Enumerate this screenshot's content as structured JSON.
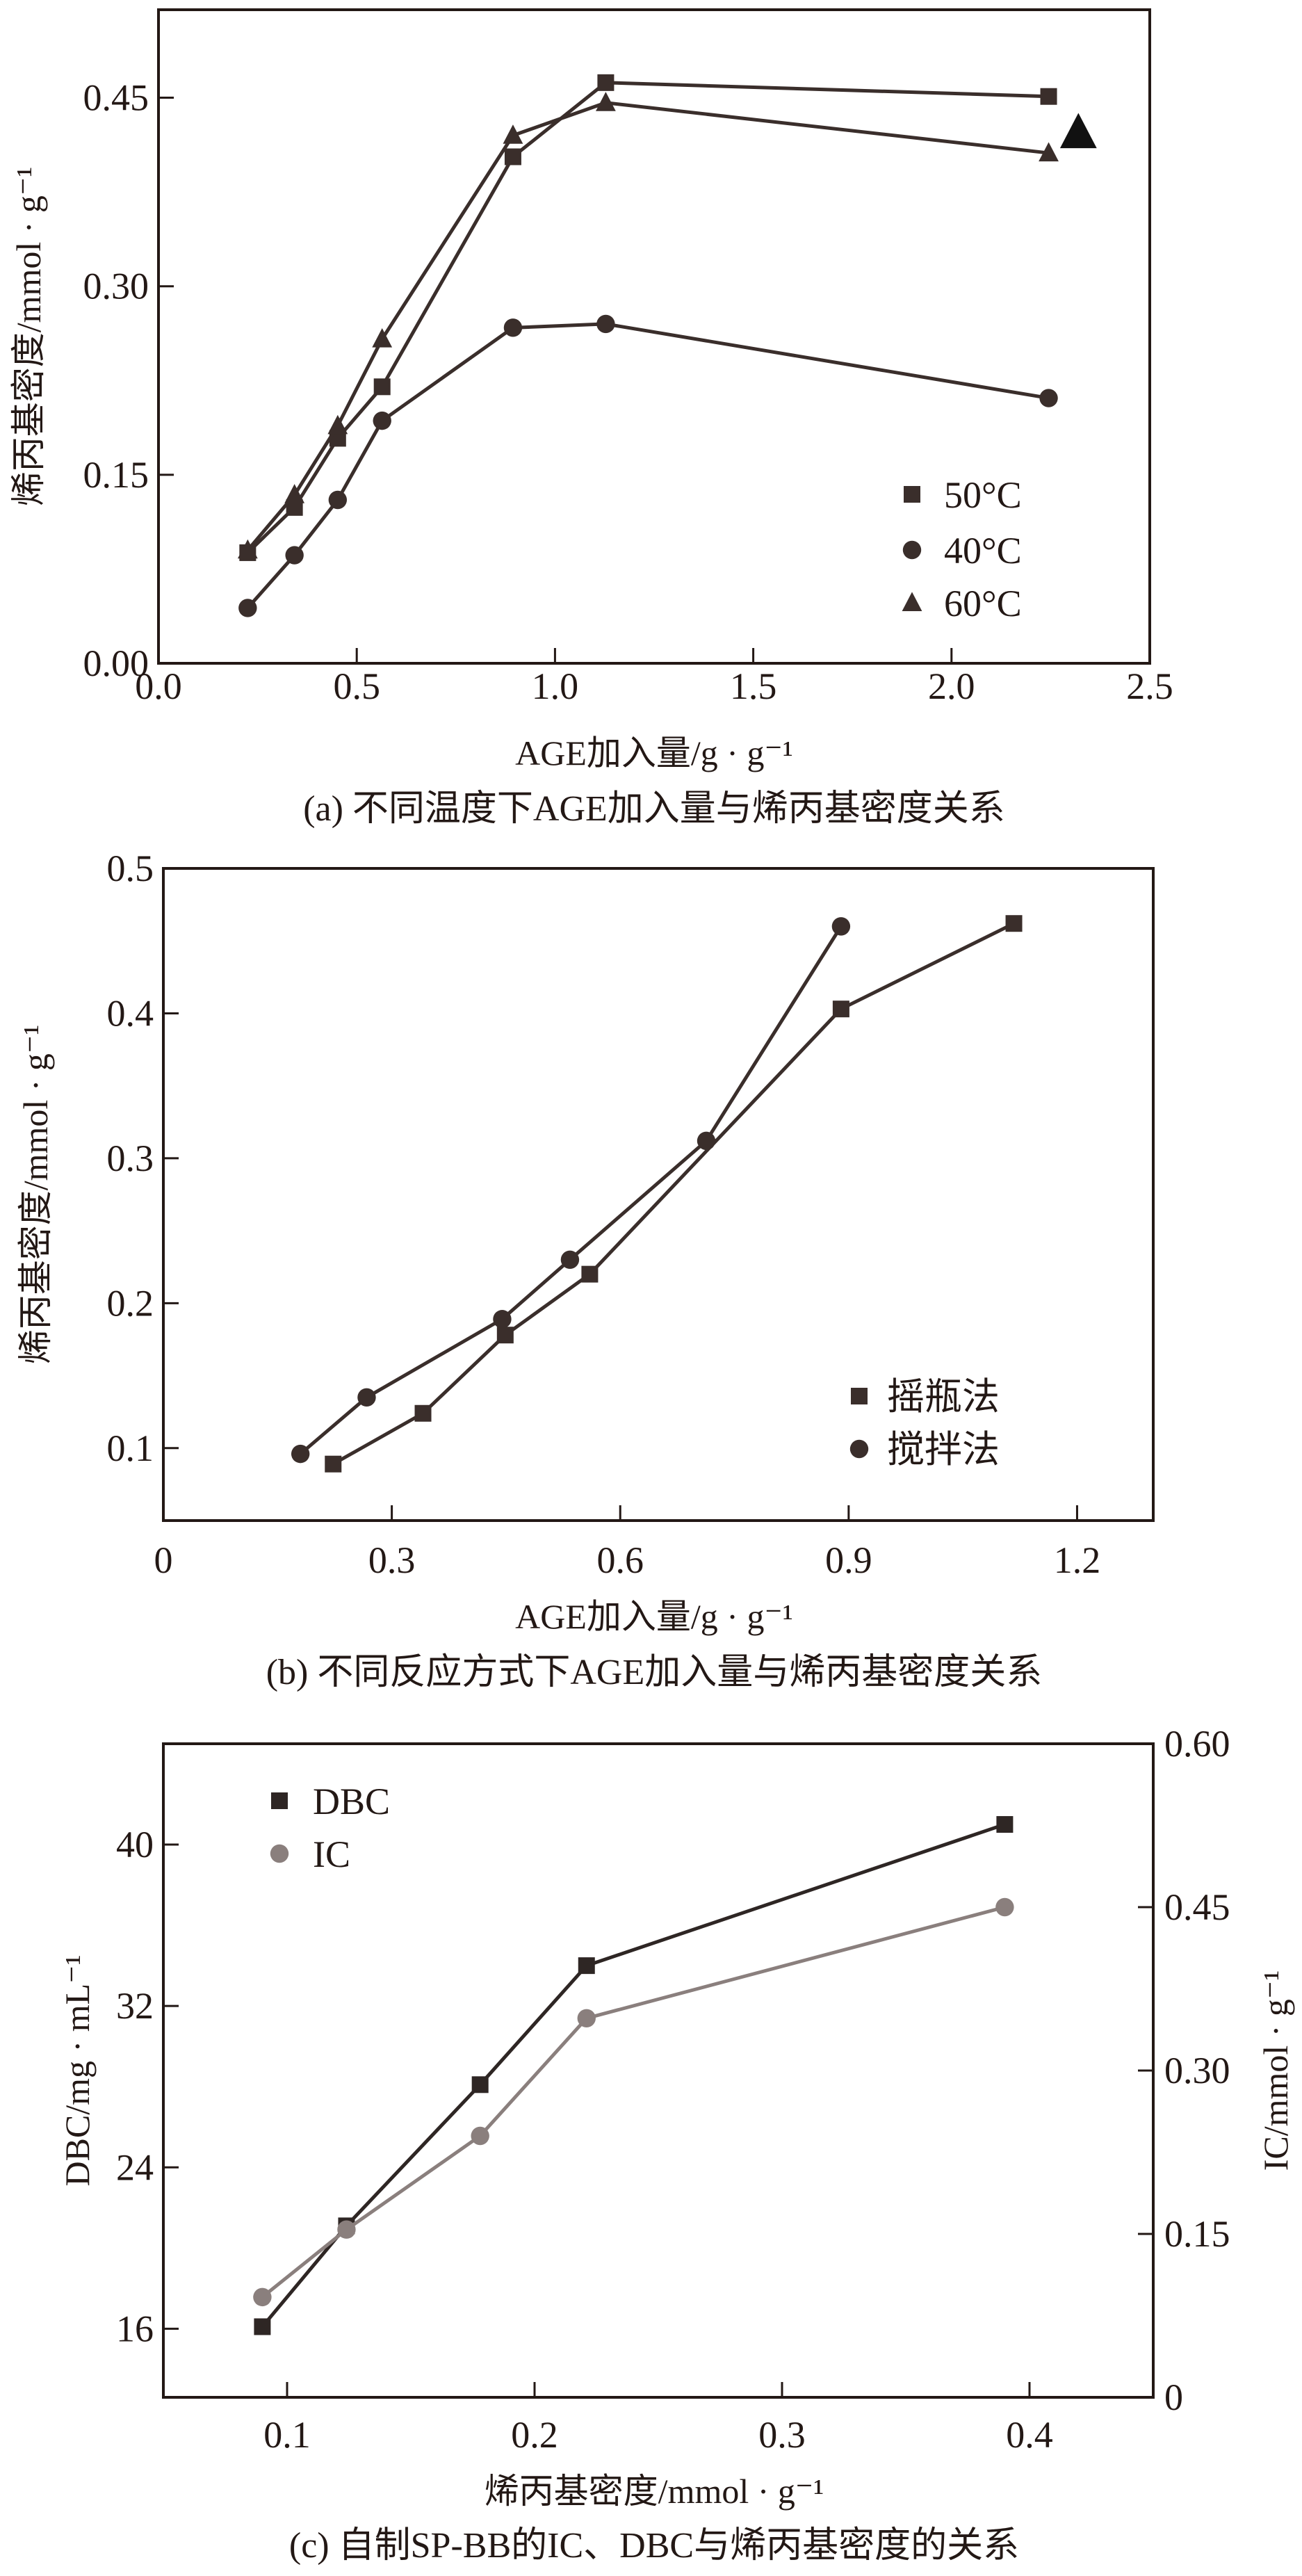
{
  "chart_data": [
    {
      "type": "line",
      "caption": "(a) 不同温度下AGE加入量与烯丙基密度关系",
      "xlabel": "AGE加入量/g · g⁻¹",
      "ylabel": "烯丙基密度/mmol · g⁻¹",
      "xlim": [
        0,
        2.5
      ],
      "ylim": [
        0,
        0.52
      ],
      "xticks": [
        "0.0",
        "0.5",
        "1.0",
        "1.5",
        "2.0",
        "2.5"
      ],
      "xtick_values": [
        0,
        0.5,
        1.0,
        1.5,
        2.0,
        2.5
      ],
      "yticks": [
        "0.00",
        "0.15",
        "0.30",
        "0.45"
      ],
      "ytick_values": [
        0,
        0.15,
        0.3,
        0.45
      ],
      "legend_position": "bottom-right",
      "grid": false,
      "series": [
        {
          "name": "50°C",
          "marker": "square",
          "color": "#3a2e2b",
          "x": [
            0.225,
            0.343,
            0.452,
            0.564,
            0.894,
            1.128,
            2.245
          ],
          "y": [
            0.088,
            0.124,
            0.179,
            0.22,
            0.403,
            0.462,
            0.451
          ]
        },
        {
          "name": "40°C",
          "marker": "circle",
          "color": "#3a2e2b",
          "x": [
            0.225,
            0.343,
            0.452,
            0.564,
            0.894,
            1.128,
            2.245
          ],
          "y": [
            0.044,
            0.086,
            0.13,
            0.193,
            0.267,
            0.27,
            0.211
          ]
        },
        {
          "name": "60°C",
          "marker": "triangle",
          "color": "#3a2e2b",
          "x": [
            0.225,
            0.343,
            0.452,
            0.564,
            0.894,
            1.128,
            2.245
          ],
          "y": [
            0.09,
            0.134,
            0.189,
            0.258,
            0.42,
            0.446,
            0.406
          ]
        }
      ],
      "annotation_marker": {
        "marker": "triangle",
        "x": 2.32,
        "y": 0.422
      }
    },
    {
      "type": "line",
      "caption": "(b) 不同反应方式下AGE加入量与烯丙基密度关系",
      "xlabel": "AGE加入量/g · g⁻¹",
      "ylabel": "烯丙基密度/mmol · g⁻¹",
      "xlim": [
        0,
        1.3
      ],
      "ylim": [
        0.05,
        0.5
      ],
      "xticks": [
        "0",
        "0.3",
        "0.6",
        "0.9",
        "1.2"
      ],
      "xtick_values": [
        0,
        0.3,
        0.6,
        0.9,
        1.2
      ],
      "yticks": [
        "0.1",
        "0.2",
        "0.3",
        "0.4",
        "0.5"
      ],
      "ytick_values": [
        0.1,
        0.2,
        0.3,
        0.4,
        0.5
      ],
      "legend_position": "bottom-right",
      "grid": false,
      "series": [
        {
          "name": "摇瓶法",
          "marker": "square",
          "color": "#3a2e2b",
          "x": [
            0.223,
            0.341,
            0.449,
            0.56,
            0.89,
            1.117
          ],
          "y": [
            0.089,
            0.124,
            0.178,
            0.22,
            0.403,
            0.462
          ]
        },
        {
          "name": "搅拌法",
          "marker": "circle",
          "color": "#3a2e2b",
          "x": [
            0.18,
            0.267,
            0.445,
            0.534,
            0.713,
            0.89
          ],
          "y": [
            0.096,
            0.135,
            0.189,
            0.23,
            0.312,
            0.46
          ]
        }
      ]
    },
    {
      "type": "line",
      "caption": "(c) 自制SP-BB的IC、DBC与烯丙基密度的关系",
      "xlabel": "烯丙基密度/mmol · g⁻¹",
      "ylabel": "DBC/mg · mL⁻¹",
      "ylabel_right": "IC/mmol · g⁻¹",
      "xlim": [
        0.05,
        0.45
      ],
      "ylim": [
        12.6,
        45
      ],
      "ylim_right": [
        0,
        0.6
      ],
      "xticks": [
        "0.1",
        "0.2",
        "0.3",
        "0.4"
      ],
      "xtick_values": [
        0.1,
        0.2,
        0.3,
        0.4
      ],
      "yticks": [
        "16",
        "24",
        "32",
        "40"
      ],
      "ytick_values": [
        16,
        24,
        32,
        40
      ],
      "yticks_right": [
        "0",
        "0.15",
        "0.30",
        "0.45",
        "0.60"
      ],
      "ytick_values_right": [
        0,
        0.15,
        0.3,
        0.45,
        0.6
      ],
      "legend_position": "top-left",
      "grid": false,
      "series": [
        {
          "name": "DBC",
          "marker": "square",
          "color": "#2e2624",
          "axis": "left",
          "x": [
            0.09,
            0.124,
            0.178,
            0.221,
            0.39
          ],
          "y": [
            16.1,
            21.1,
            28.1,
            34.0,
            41.0
          ]
        },
        {
          "name": "IC",
          "marker": "circle",
          "color": "#8a7f7d",
          "axis": "right",
          "x": [
            0.09,
            0.124,
            0.178,
            0.221,
            0.39
          ],
          "y": [
            0.092,
            0.154,
            0.24,
            0.348,
            0.45
          ]
        }
      ]
    }
  ]
}
